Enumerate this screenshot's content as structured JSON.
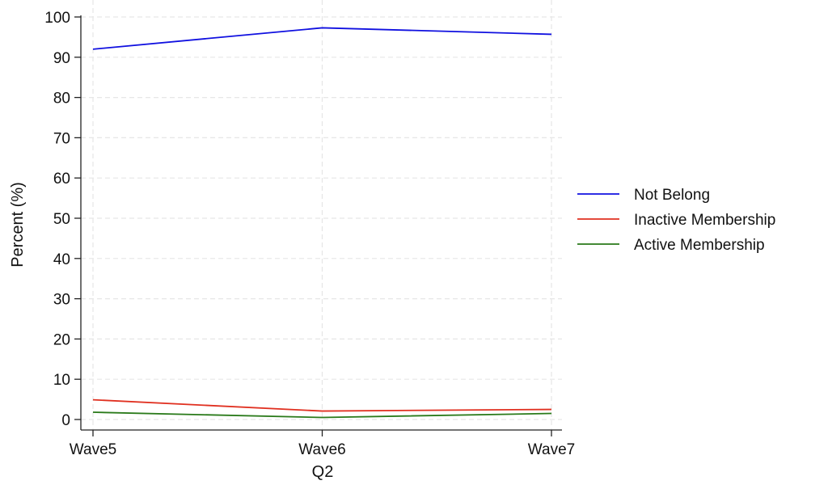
{
  "chart_data": {
    "type": "line",
    "title": "",
    "xlabel": "Q2",
    "ylabel": "Percent  (%)",
    "categories": [
      "Wave5",
      "Wave6",
      "Wave7"
    ],
    "ylim": [
      0,
      100
    ],
    "yticks": [
      0,
      10,
      20,
      30,
      40,
      50,
      60,
      70,
      80,
      90,
      100
    ],
    "grid": true,
    "legend_position": "right",
    "series": [
      {
        "name": "Not Belong",
        "color": "#1010e0",
        "values": [
          92.0,
          97.3,
          95.7
        ]
      },
      {
        "name": "Inactive Membership",
        "color": "#e03020",
        "values": [
          4.9,
          2.1,
          2.5
        ]
      },
      {
        "name": "Active Membership",
        "color": "#2a7a1a",
        "values": [
          1.8,
          0.5,
          1.5
        ]
      }
    ]
  }
}
